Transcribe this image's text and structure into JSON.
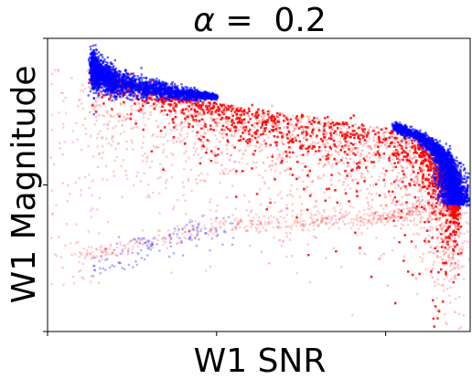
{
  "chart_data": {
    "type": "scatter",
    "title": "α =  0.2",
    "title_prefix": "α",
    "title_suffix": " =  0.2",
    "xlabel": "W1 SNR",
    "ylabel": "W1 Magnitude",
    "xlim": [
      0,
      2.5
    ],
    "ylim": [
      0,
      2.0
    ],
    "x_ticks": [
      0,
      1,
      2
    ],
    "y_ticks": [
      0,
      1,
      2
    ],
    "tick_labels_shown": false,
    "grid": false,
    "legend": "none",
    "series": [
      {
        "color": "#ff0000",
        "alpha": 0.2,
        "main_band": [
          [
            0.25,
            1.78
          ],
          [
            0.5,
            1.69
          ],
          [
            0.8,
            1.6
          ],
          [
            1.1,
            1.54
          ],
          [
            1.4,
            1.49
          ],
          [
            1.7,
            1.44
          ],
          [
            2.0,
            1.38
          ],
          [
            2.2,
            1.31
          ],
          [
            2.3,
            1.22
          ],
          [
            2.36,
            1.12
          ],
          [
            2.4,
            1.0
          ],
          [
            2.42,
            0.88
          ]
        ],
        "band_spread": [
          0.04,
          0.05,
          0.07,
          0.1,
          0.13,
          0.15,
          0.17,
          0.18,
          0.18,
          0.16,
          0.12,
          0.08
        ],
        "lower_arc": [
          [
            0.2,
            0.5
          ],
          [
            0.6,
            0.62
          ],
          [
            1.0,
            0.72
          ],
          [
            1.4,
            0.74
          ],
          [
            1.8,
            0.76
          ],
          [
            2.1,
            0.8
          ],
          [
            2.3,
            0.85
          ]
        ]
      },
      {
        "color": "#0000ff",
        "alpha": 0.2,
        "upper_segment": [
          [
            0.26,
            1.8
          ],
          [
            0.3,
            1.76
          ],
          [
            0.4,
            1.7
          ],
          [
            0.6,
            1.66
          ],
          [
            0.82,
            1.62
          ],
          [
            1.0,
            1.6
          ]
        ],
        "lower_segment": [
          [
            2.05,
            1.4
          ],
          [
            2.2,
            1.33
          ],
          [
            2.3,
            1.25
          ],
          [
            2.36,
            1.15
          ],
          [
            2.39,
            1.05
          ],
          [
            2.41,
            0.95
          ],
          [
            2.43,
            0.87
          ]
        ],
        "scattered": [
          [
            0.28,
            0.45
          ],
          [
            0.6,
            0.6
          ],
          [
            0.85,
            0.65
          ],
          [
            1.1,
            0.7
          ]
        ]
      }
    ]
  }
}
